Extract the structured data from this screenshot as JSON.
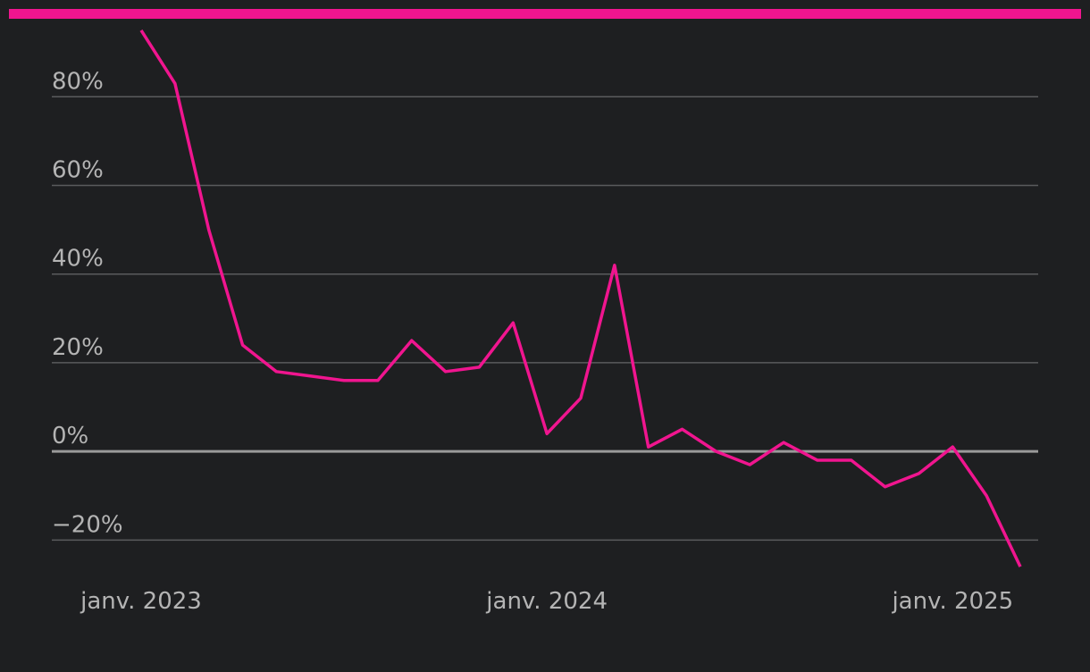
{
  "chart_data": {
    "type": "line",
    "categories": [
      "janv. 2023",
      null,
      null,
      null,
      null,
      null,
      null,
      null,
      null,
      null,
      null,
      null,
      "janv. 2024",
      null,
      null,
      null,
      null,
      null,
      null,
      null,
      null,
      null,
      null,
      null,
      "janv. 2025",
      null,
      null
    ],
    "series": [
      {
        "color": "#f0158f",
        "values": [
          95,
          83,
          50,
          24,
          18,
          17,
          16,
          16,
          25,
          18,
          19,
          29,
          4,
          12,
          42,
          1,
          5,
          0,
          -3,
          2,
          -2,
          -2,
          -8,
          -5,
          1,
          -10,
          -26
        ]
      }
    ],
    "ylim": [
      -28,
      98
    ],
    "yticks": [
      {
        "value": -20,
        "label": "−20%"
      },
      {
        "value": 0,
        "label": "0%"
      },
      {
        "value": 20,
        "label": "20%"
      },
      {
        "value": 40,
        "label": "40%"
      },
      {
        "value": 60,
        "label": "60%"
      },
      {
        "value": 80,
        "label": "80%"
      }
    ],
    "grid": true
  }
}
